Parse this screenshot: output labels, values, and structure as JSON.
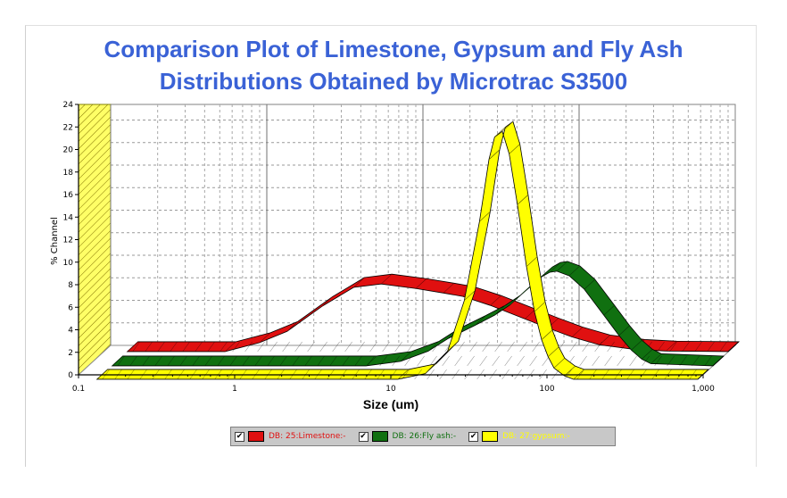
{
  "title_line1": "Comparison Plot of Limestone, Gypsum and Fly Ash",
  "title_line2": "Distributions Obtained by Microtrac S3500",
  "chart_data": {
    "type": "line",
    "title": "Comparison Plot of Limestone, Gypsum and Fly Ash Distributions Obtained by Microtrac S3500",
    "xlabel": "Size (um)",
    "ylabel": "% Channel",
    "xscale": "log",
    "xlim": [
      0.1,
      1000
    ],
    "ylim": [
      0,
      24
    ],
    "x_ticks": [
      "0.1",
      "1",
      "10",
      "100",
      "1,000"
    ],
    "y_ticks": [
      "0",
      "2",
      "4",
      "6",
      "8",
      "10",
      "12",
      "14",
      "16",
      "18",
      "20",
      "22",
      "24"
    ],
    "grid": true,
    "legend": "bottom",
    "series": [
      {
        "name": "DB: 25:Limestone:-",
        "color": "#e01010",
        "x": [
          0.6,
          1.0,
          1.5,
          2.5,
          4.0,
          6.0,
          10,
          15,
          20,
          30,
          50,
          70,
          100,
          150,
          250,
          400,
          1000
        ],
        "y": [
          0,
          0.8,
          1.8,
          4.0,
          5.7,
          6.0,
          5.6,
          5.2,
          4.9,
          4.1,
          2.9,
          2.1,
          1.3,
          0.6,
          0.2,
          0.05,
          0
        ]
      },
      {
        "name": "DB: 26:Fly ash:-",
        "color": "#107010",
        "x": [
          6,
          10,
          15,
          20,
          30,
          40,
          50,
          60,
          70,
          80,
          90,
          100,
          120,
          150,
          200,
          250,
          300,
          350,
          400,
          1000
        ],
        "y": [
          0,
          0.4,
          1.3,
          2.4,
          3.6,
          4.5,
          5.4,
          6.4,
          7.2,
          7.9,
          8.3,
          8.4,
          8.0,
          6.8,
          4.5,
          2.7,
          1.4,
          0.6,
          0.2,
          0
        ]
      },
      {
        "name": "DB: 27:gypsum:-",
        "color": "#ffff00",
        "x": [
          12,
          18,
          25,
          32,
          40,
          46,
          50,
          56,
          62,
          70,
          80,
          90,
          100,
          110,
          120,
          140,
          160,
          1000
        ],
        "y": [
          0,
          0.5,
          2.5,
          7.0,
          14.0,
          19.5,
          21.5,
          22.0,
          20.0,
          15.5,
          10.0,
          6.0,
          3.5,
          2.0,
          1.0,
          0.3,
          0,
          0
        ]
      }
    ]
  },
  "legend": {
    "items": [
      {
        "label": "DB: 25:Limestone:-",
        "color": "#e01010",
        "text_color": "#e01010",
        "checked": "✔"
      },
      {
        "label": "DB: 26:Fly ash:-",
        "color": "#107010",
        "text_color": "#107010",
        "checked": "✔"
      },
      {
        "label": "DB: 27:gypsum:-",
        "color": "#ffff00",
        "text_color": "#ffff00",
        "checked": "✔"
      }
    ]
  }
}
